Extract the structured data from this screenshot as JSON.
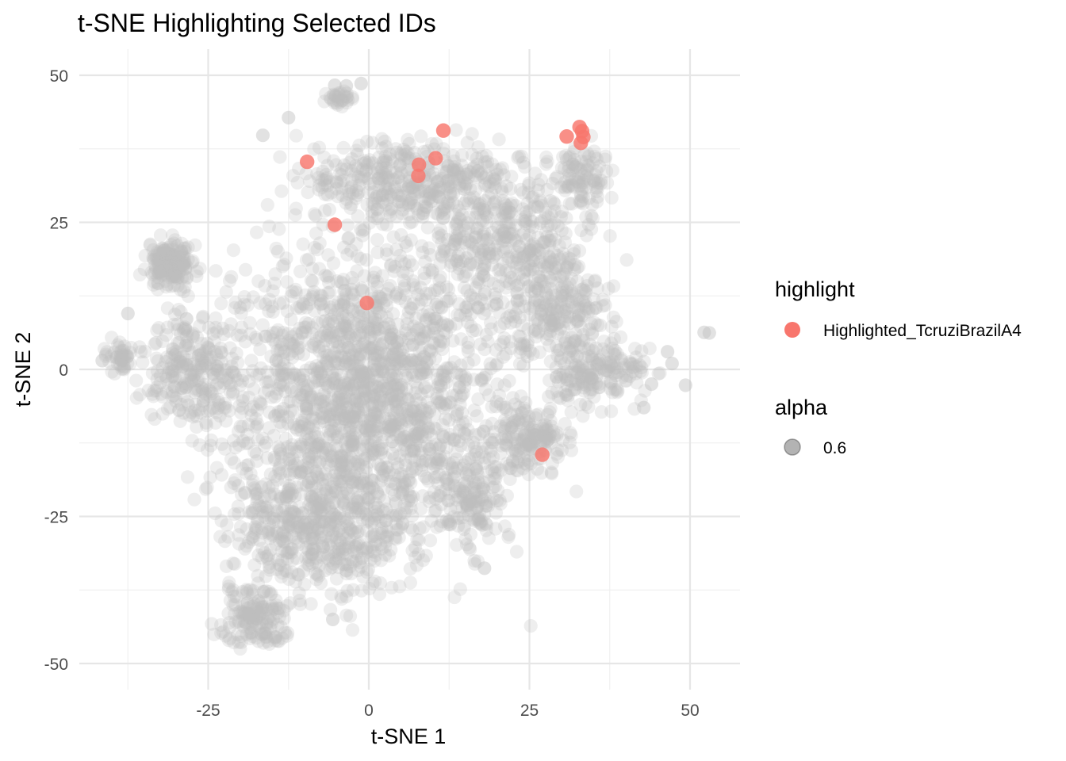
{
  "chart_data": {
    "type": "scatter",
    "title": "t-SNE Highlighting Selected IDs",
    "xlabel": "t-SNE 1",
    "ylabel": "t-SNE 2",
    "xlim": [
      -45,
      58
    ],
    "ylim": [
      -55,
      54
    ],
    "x_ticks": [
      -25,
      0,
      25,
      50
    ],
    "x_tick_labels": [
      "-25",
      "0",
      "25",
      "50"
    ],
    "y_ticks": [
      50,
      25,
      0,
      -25,
      -50
    ],
    "y_tick_labels": [
      "50",
      "25",
      "0",
      "-25",
      "-50"
    ],
    "grid": true,
    "legend_position": "right",
    "legend": {
      "highlight": {
        "title": "highlight",
        "label": "Highlighted_TcruziBrazilA4",
        "color": "#f8766d"
      },
      "alpha": {
        "title": "alpha",
        "label": "0.6",
        "color": "#808080"
      }
    },
    "background_color": "#bebebe",
    "series": [
      {
        "name": "Highlighted_TcruziBrazilA4",
        "color": "#f8766d",
        "points": [
          [
            32.8,
            41.2
          ],
          [
            33.2,
            40.5
          ],
          [
            33.4,
            39.5
          ],
          [
            33.0,
            38.5
          ],
          [
            30.8,
            39.6
          ],
          [
            11.6,
            40.6
          ],
          [
            10.4,
            35.9
          ],
          [
            7.8,
            34.8
          ],
          [
            7.7,
            32.9
          ],
          [
            -9.6,
            35.3
          ],
          [
            -5.3,
            24.6
          ],
          [
            -0.3,
            11.3
          ],
          [
            27.0,
            -14.5
          ]
        ]
      }
    ]
  }
}
